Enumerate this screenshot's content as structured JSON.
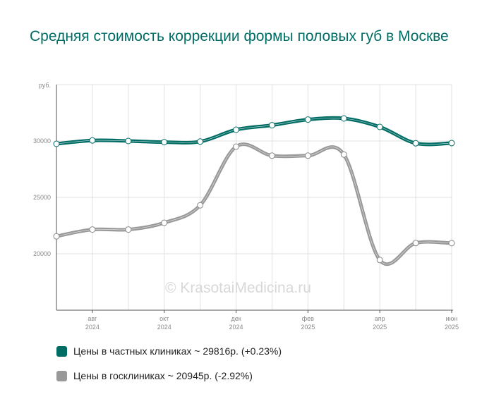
{
  "title": "Средняя стоимость коррекции формы половых губ в Москве",
  "watermark": "© KrasotaiMedicina.ru",
  "colors": {
    "private": "#006d65",
    "public": "#999999",
    "grid": "#e0e0e0",
    "axis": "#555555"
  },
  "chart_data": {
    "type": "line",
    "title": "Средняя стоимость коррекции формы половых губ в Москве",
    "ylabel": "руб.",
    "ylim": [
      15000,
      35000
    ],
    "yticks": [
      20000,
      25000,
      30000
    ],
    "ytick_labels": [
      "20000",
      "25000",
      "30000"
    ],
    "grid": true,
    "x": [
      "2024-07",
      "2024-08",
      "2024-09",
      "2024-10",
      "2024-11",
      "2024-12",
      "2025-01",
      "2025-02",
      "2025-03",
      "2025-04",
      "2025-05",
      "2025-06"
    ],
    "x_tick_labels": [
      {
        "month": "авг",
        "year": "2024"
      },
      {
        "month": "окт",
        "year": "2024"
      },
      {
        "month": "дек",
        "year": "2024"
      },
      {
        "month": "фев",
        "year": "2025"
      },
      {
        "month": "апр",
        "year": "2025"
      },
      {
        "month": "июн",
        "year": "2025"
      }
    ],
    "x_tick_months": [
      "2024-08",
      "2024-10",
      "2024-12",
      "2025-02",
      "2025-04",
      "2025-06"
    ],
    "series": [
      {
        "name": "Цены в частных клиниках",
        "legend": "Цены в частных клиниках ~ 29816р. (+0.23%)",
        "color": "#006d65",
        "values": [
          29750,
          30050,
          30000,
          29900,
          29950,
          31000,
          31400,
          31900,
          32000,
          31250,
          29800,
          29816
        ]
      },
      {
        "name": "Цены в госклиниках",
        "legend": "Цены в госклиниках ~ 20945р. (-2.92%)",
        "color": "#999999",
        "values": [
          21550,
          22150,
          22150,
          22750,
          24300,
          29500,
          28700,
          28700,
          28800,
          19450,
          20950,
          20945
        ]
      }
    ],
    "legend_position": "bottom-left"
  }
}
